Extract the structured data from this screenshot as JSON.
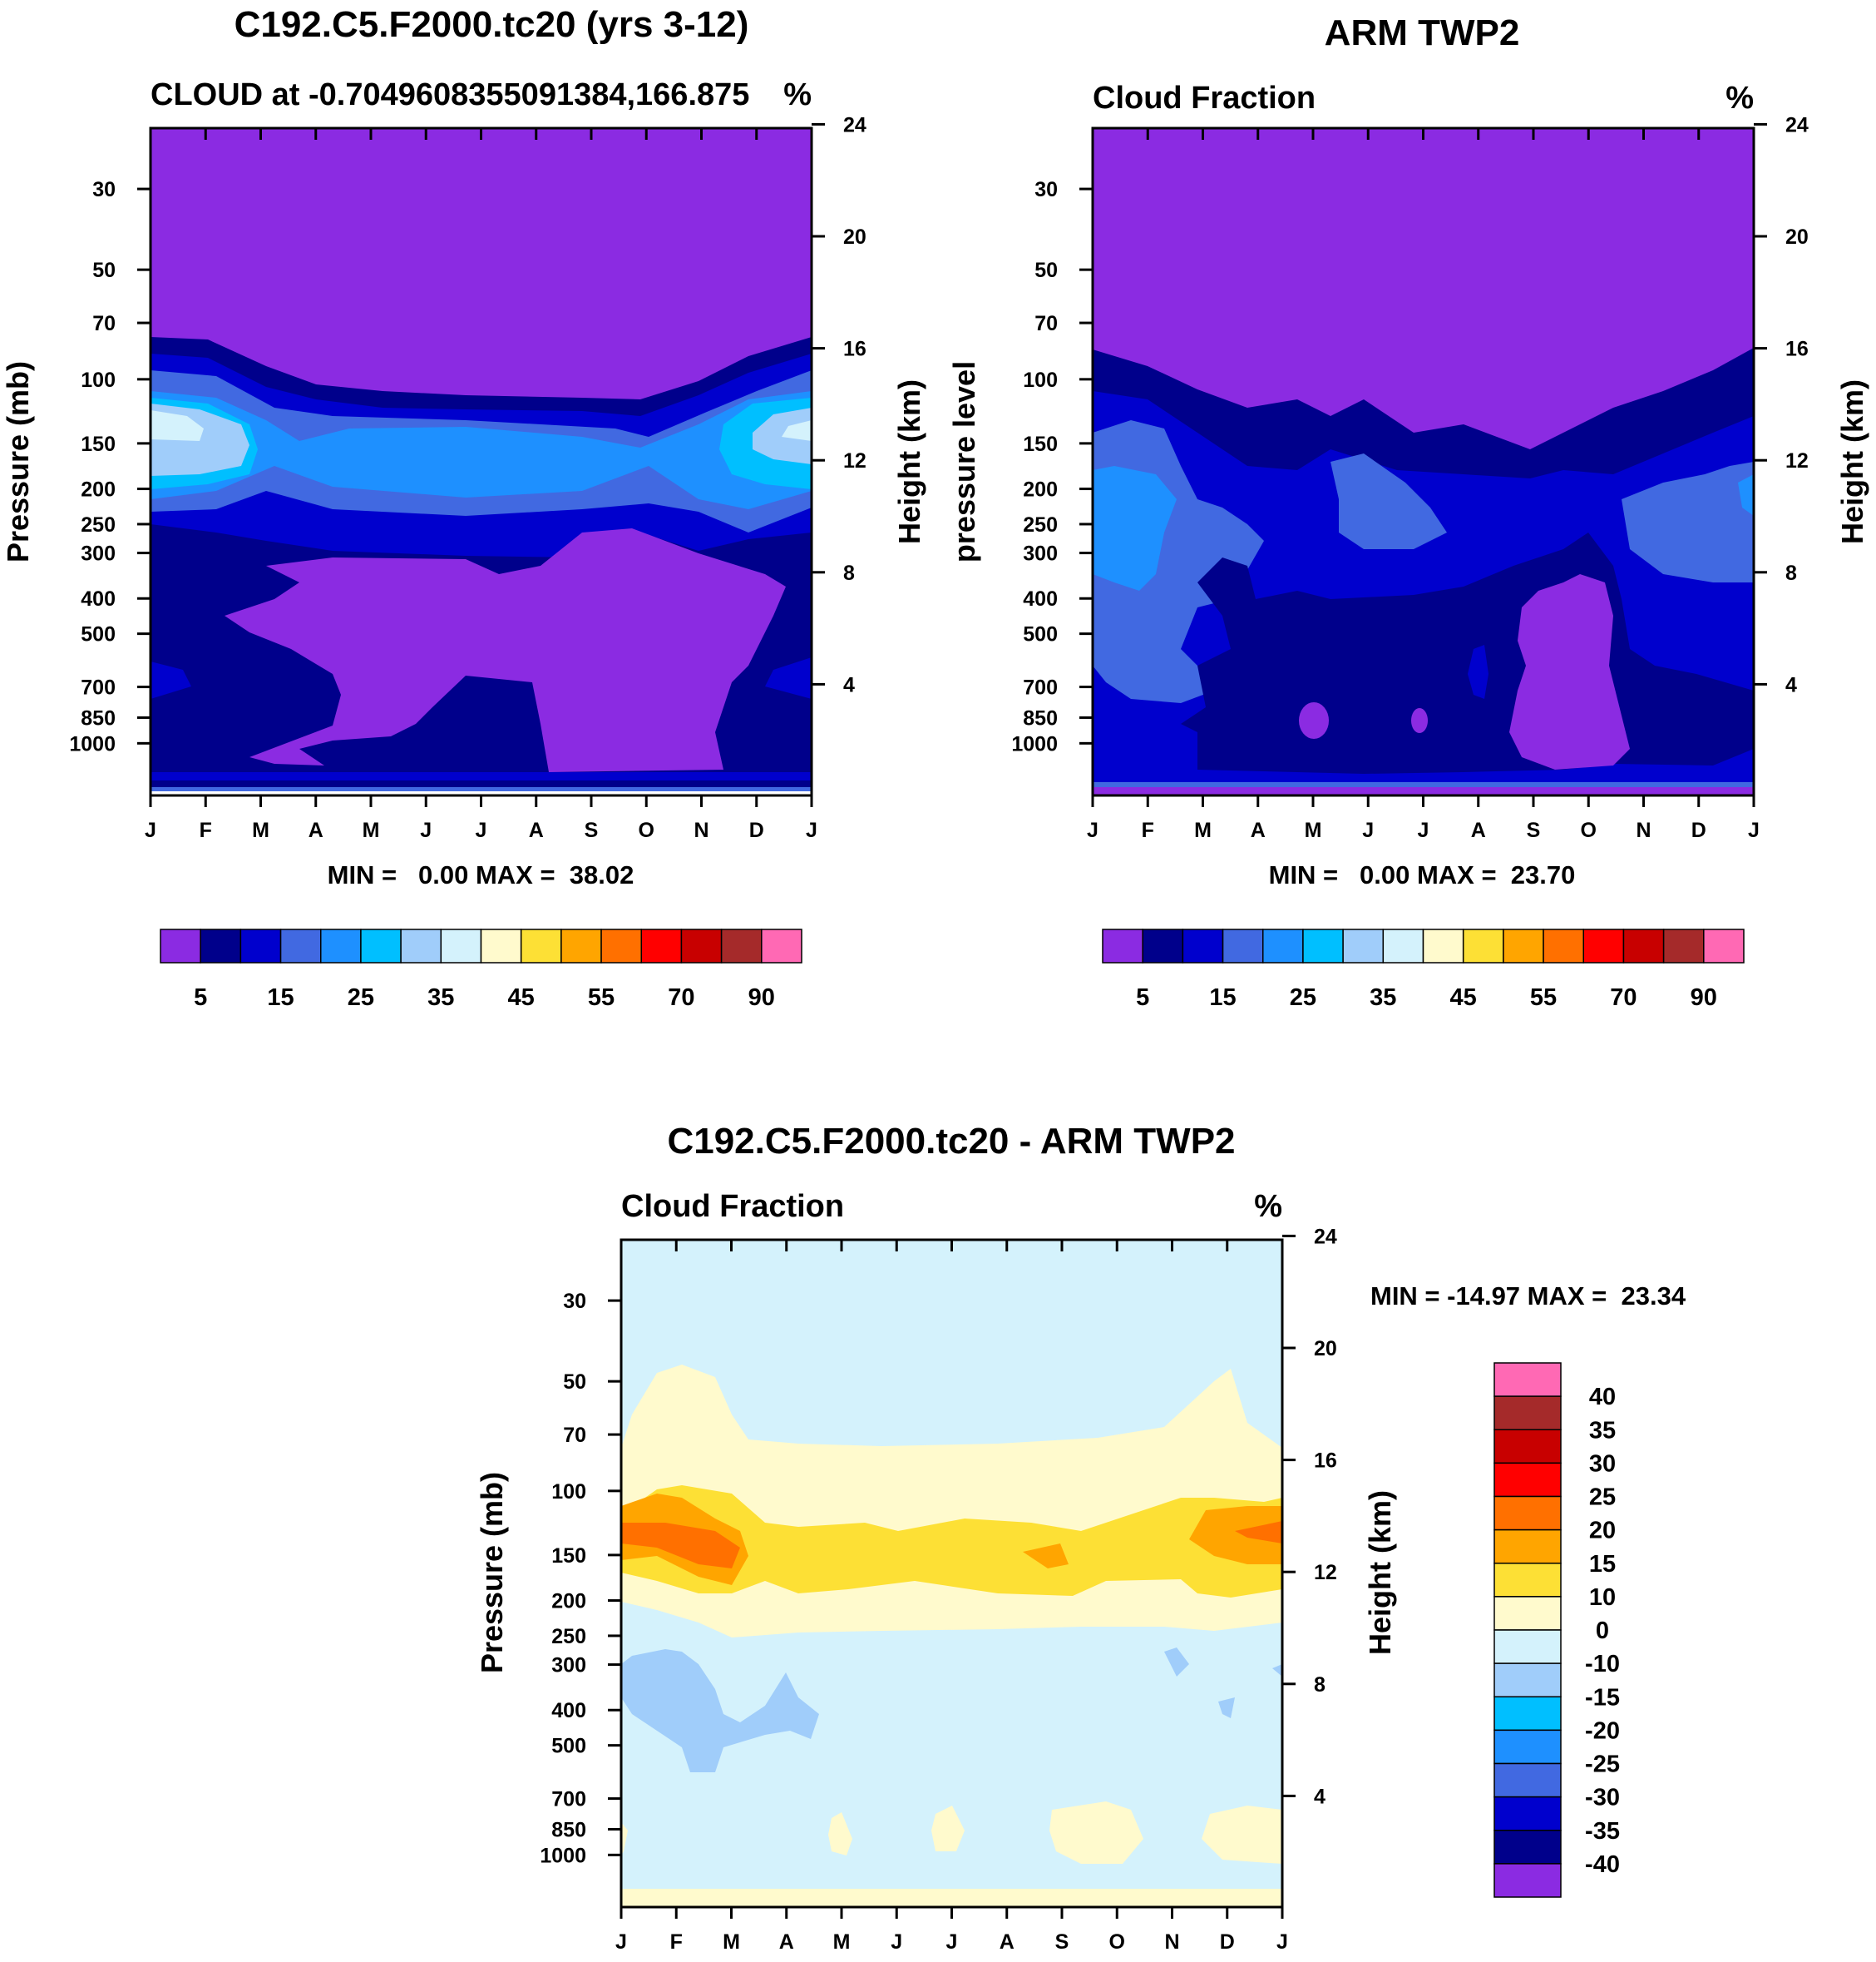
{
  "chart_data": [
    {
      "type": "heatmap",
      "panel": "model",
      "title": "C192.C5.F2000.tc20 (yrs 3-12)",
      "subtitle": "CLOUD at -0.7049608355091384,166.875",
      "units": "%",
      "ylabel_left": "Pressure (mb)",
      "ylabel_right": "Height (km)",
      "x_ticks": [
        "J",
        "F",
        "M",
        "A",
        "M",
        "J",
        "J",
        "A",
        "S",
        "O",
        "N",
        "D",
        "J"
      ],
      "y_ticks_left": [
        30,
        50,
        70,
        100,
        150,
        200,
        250,
        300,
        400,
        500,
        700,
        850,
        1000
      ],
      "y_ticks_right": [
        24,
        20,
        16,
        12,
        8,
        4
      ],
      "minmax_text": "MIN =   0.00 MAX =  38.02",
      "min": 0.0,
      "max": 38.02,
      "bands": [
        {
          "pressure_range": [
            20,
            78
          ],
          "value": "<5"
        },
        {
          "pressure_range": [
            78,
            100
          ],
          "value": "5-10"
        },
        {
          "pressure_range": [
            100,
            130
          ],
          "value": "20-40"
        },
        {
          "pressure_range": [
            130,
            180
          ],
          "value": "25-30"
        },
        {
          "pressure_range": [
            180,
            240
          ],
          "value": "10-15"
        },
        {
          "pressure_range": [
            240,
            900
          ],
          "value": "5-10"
        },
        {
          "pressure_range": [
            300,
            850
          ],
          "value": "<5",
          "months": "A-N"
        }
      ],
      "colorbar": {
        "labels": [
          "5",
          "15",
          "25",
          "35",
          "45",
          "55",
          "70",
          "90"
        ],
        "colors": [
          "#8b2be2",
          "#00008b",
          "#0000cd",
          "#4169e1",
          "#1e90ff",
          "#00bfff",
          "#a0cdfa",
          "#d4f2fc",
          "#fffacd",
          "#fde035",
          "#ffa500",
          "#ff7000",
          "#ff0000",
          "#c80000",
          "#a52a2a",
          "#ff69b4"
        ]
      }
    },
    {
      "type": "heatmap",
      "panel": "observation",
      "title": "ARM TWP2",
      "subtitle": "Cloud Fraction",
      "units": "%",
      "ylabel_left": "pressure level",
      "ylabel_right": "Height (km)",
      "x_ticks": [
        "J",
        "F",
        "M",
        "A",
        "M",
        "J",
        "J",
        "A",
        "S",
        "O",
        "N",
        "D",
        "J"
      ],
      "y_ticks_left": [
        30,
        50,
        70,
        100,
        150,
        200,
        250,
        300,
        400,
        500,
        700,
        850,
        1000
      ],
      "y_ticks_right": [
        24,
        20,
        16,
        12,
        8,
        4
      ],
      "minmax_text": "MIN =   0.00 MAX =  23.70",
      "min": 0.0,
      "max": 23.7,
      "bands": [
        {
          "pressure_range": [
            20,
            90
          ],
          "value": "<5"
        },
        {
          "pressure_range": [
            90,
            160
          ],
          "value": "5-10"
        },
        {
          "pressure_range": [
            150,
            450
          ],
          "value": "15-20"
        },
        {
          "pressure_range": [
            450,
            900
          ],
          "value": "5-15"
        },
        {
          "pressure_range": [
            350,
            800
          ],
          "value": "<5",
          "months": "S-O"
        }
      ],
      "colorbar": {
        "labels": [
          "5",
          "15",
          "25",
          "35",
          "45",
          "55",
          "70",
          "90"
        ],
        "colors": [
          "#8b2be2",
          "#00008b",
          "#0000cd",
          "#4169e1",
          "#1e90ff",
          "#00bfff",
          "#a0cdfa",
          "#d4f2fc",
          "#fffacd",
          "#fde035",
          "#ffa500",
          "#ff7000",
          "#ff0000",
          "#c80000",
          "#a52a2a",
          "#ff69b4"
        ]
      }
    },
    {
      "type": "heatmap",
      "panel": "difference",
      "title": "C192.C5.F2000.tc20 - ARM TWP2",
      "subtitle": "Cloud Fraction",
      "units": "%",
      "ylabel_left": "Pressure (mb)",
      "ylabel_right": "Height (km)",
      "x_ticks": [
        "J",
        "F",
        "M",
        "A",
        "M",
        "J",
        "J",
        "A",
        "S",
        "O",
        "N",
        "D",
        "J"
      ],
      "y_ticks_left": [
        30,
        50,
        70,
        100,
        150,
        200,
        250,
        300,
        400,
        500,
        700,
        850,
        1000
      ],
      "y_ticks_right": [
        24,
        20,
        16,
        12,
        8,
        4
      ],
      "minmax_text": "MIN = -14.97 MAX =  23.34",
      "min": -14.97,
      "max": 23.34,
      "bands": [
        {
          "pressure_range": [
            20,
            70
          ],
          "value": "-10-0"
        },
        {
          "pressure_range": [
            70,
            100
          ],
          "value": "0-10"
        },
        {
          "pressure_range": [
            100,
            180
          ],
          "value": "10-20"
        },
        {
          "pressure_range": [
            180,
            210
          ],
          "value": "0-10"
        },
        {
          "pressure_range": [
            210,
            900
          ],
          "value": "-10-0"
        },
        {
          "pressure_range": [
            250,
            420
          ],
          "value": "-15--10",
          "months": "J-A"
        },
        {
          "pressure_range": [
            900,
            1000
          ],
          "value": "0-10"
        }
      ],
      "colorbar": {
        "labels": [
          "40",
          "35",
          "30",
          "25",
          "20",
          "15",
          "10",
          "0",
          "-10",
          "-15",
          "-20",
          "-25",
          "-30",
          "-35",
          "-40"
        ],
        "colors": [
          "#ff69b4",
          "#a52a2a",
          "#c80000",
          "#ff0000",
          "#ff7000",
          "#ffa500",
          "#fde035",
          "#fffacd",
          "#d4f2fc",
          "#a0cdfa",
          "#00bfff",
          "#1e90ff",
          "#4169e1",
          "#0000cd",
          "#00008b",
          "#8b2be2"
        ]
      }
    }
  ]
}
